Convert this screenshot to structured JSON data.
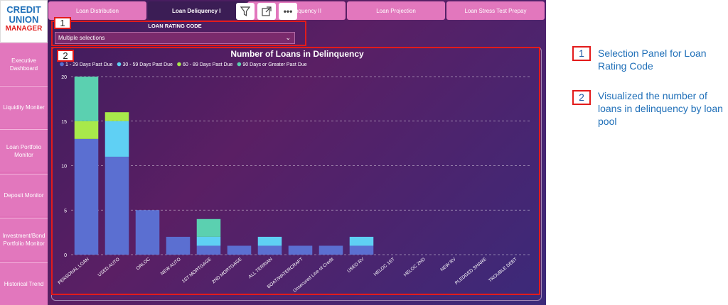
{
  "logo": {
    "line1": "CREDIT",
    "line2": "UNION",
    "line3": "MANAGER"
  },
  "sidebar": {
    "items": [
      {
        "label": "Executive Dashboard"
      },
      {
        "label": "Liquidity Moniter"
      },
      {
        "label": "Loan Portfolio Monitor"
      },
      {
        "label": "Deposit Monitor"
      },
      {
        "label": "Investment/Bond Portfolio Monitor"
      },
      {
        "label": "Historical Trend"
      }
    ]
  },
  "tabs": [
    {
      "label": "Loan Distribution"
    },
    {
      "label": "Loan Deliquency I"
    },
    {
      "label": "nquency II"
    },
    {
      "label": "Loan Projection"
    },
    {
      "label": "Loan Stress Test Prepay"
    }
  ],
  "toolbar": {
    "more_label": "•••"
  },
  "filter": {
    "title": "LOAN RATING CODE",
    "value": "Multiple selections"
  },
  "annotations": {
    "box1_num": "1",
    "box2_num": "2",
    "right": [
      {
        "num": "1",
        "text": "Selection Panel for Loan Rating Code"
      },
      {
        "num": "2",
        "text": "Visualized the number of loans in delinquency by loan pool"
      }
    ]
  },
  "colors": {
    "s1": "#5b6fd1",
    "s2": "#5fd0f4",
    "s3": "#a8e94b",
    "s4": "#5bd0b0",
    "accent": "#e31b1b"
  },
  "chart_data": {
    "type": "bar",
    "stacked": true,
    "title": "Number of Loans in Delinquency",
    "xlabel": "",
    "ylabel": "",
    "ylim": [
      0,
      20
    ],
    "yticks": [
      0,
      5,
      10,
      15,
      20
    ],
    "legend_position": "top-left",
    "grid": true,
    "categories": [
      "PERSONAL LOAN",
      "USED AUTO",
      "ORLOC",
      "NEW AUTO",
      "1ST MORTGAGE",
      "2ND MORTGAGE",
      "ALL TERRIAN",
      "BOAT/WATERCRAFT",
      "Unsecured Line of Credit",
      "USED RV",
      "HELOC 1ST",
      "HELOC 2ND",
      "NEW RV",
      "PLEDGED SHARE",
      "TROUBLE DEBT"
    ],
    "series": [
      {
        "name": "1 - 29 Days Past Due",
        "values": [
          13,
          11,
          5,
          2,
          1,
          1,
          1,
          1,
          1,
          1,
          0,
          0,
          0,
          0,
          0
        ]
      },
      {
        "name": "30 - 59 Days Past Due",
        "values": [
          0,
          4,
          0,
          0,
          1,
          0,
          1,
          0,
          0,
          1,
          0,
          0,
          0,
          0,
          0
        ]
      },
      {
        "name": "60 - 89 Days Past Due",
        "values": [
          2,
          1,
          0,
          0,
          0,
          0,
          0,
          0,
          0,
          0,
          0,
          0,
          0,
          0,
          0
        ]
      },
      {
        "name": "90 Days or Greater Past Due",
        "values": [
          5,
          0,
          0,
          0,
          2,
          0,
          0,
          0,
          0,
          0,
          0,
          0,
          0,
          0,
          0
        ]
      }
    ]
  }
}
